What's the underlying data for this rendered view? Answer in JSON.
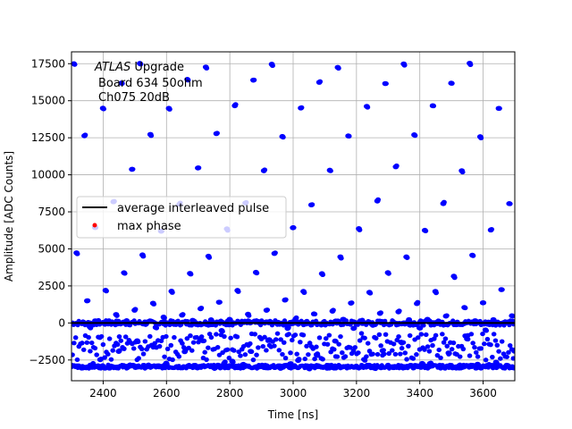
{
  "chart_data": {
    "type": "scatter",
    "xlabel": "Time [ns]",
    "ylabel": "Amplitude [ADC Counts]",
    "xlim": [
      2300,
      3700
    ],
    "ylim": [
      -3900,
      18300
    ],
    "xticks": [
      2400,
      2600,
      2800,
      3000,
      3200,
      3400,
      3600
    ],
    "yticks": [
      -2500,
      0,
      2500,
      5000,
      7500,
      10000,
      12500,
      15000,
      17500
    ],
    "grid": true,
    "legend_position": "center-left",
    "annotation": {
      "line1_italic": "ATLAS",
      "line1_rest": " Upgrade",
      "line2": "Board 634 50ohm",
      "line3": "Ch075 20dB"
    },
    "pulse_period_ns": 25,
    "pulse_phase_offset_ns": 7.5,
    "pulse_peak": [
      17400,
      16300,
      14600,
      12700,
      10400,
      8100,
      6300,
      4600,
      3300,
      2200,
      1400,
      900,
      500,
      250,
      100,
      30,
      0,
      -400,
      -1200,
      -2000,
      -2600,
      -2900,
      -3000,
      -2950,
      -2800
    ],
    "pedestal_level": 0,
    "undershoot_level": -2950,
    "series": [
      {
        "name": "average interleaved pulse",
        "style": "line",
        "color": "#000000",
        "x": [
          2300,
          3700
        ],
        "y": [
          0,
          0
        ]
      },
      {
        "name": "max phase",
        "style": "points",
        "color": "#ff0000"
      }
    ],
    "scatter_color": "#0000ff"
  }
}
